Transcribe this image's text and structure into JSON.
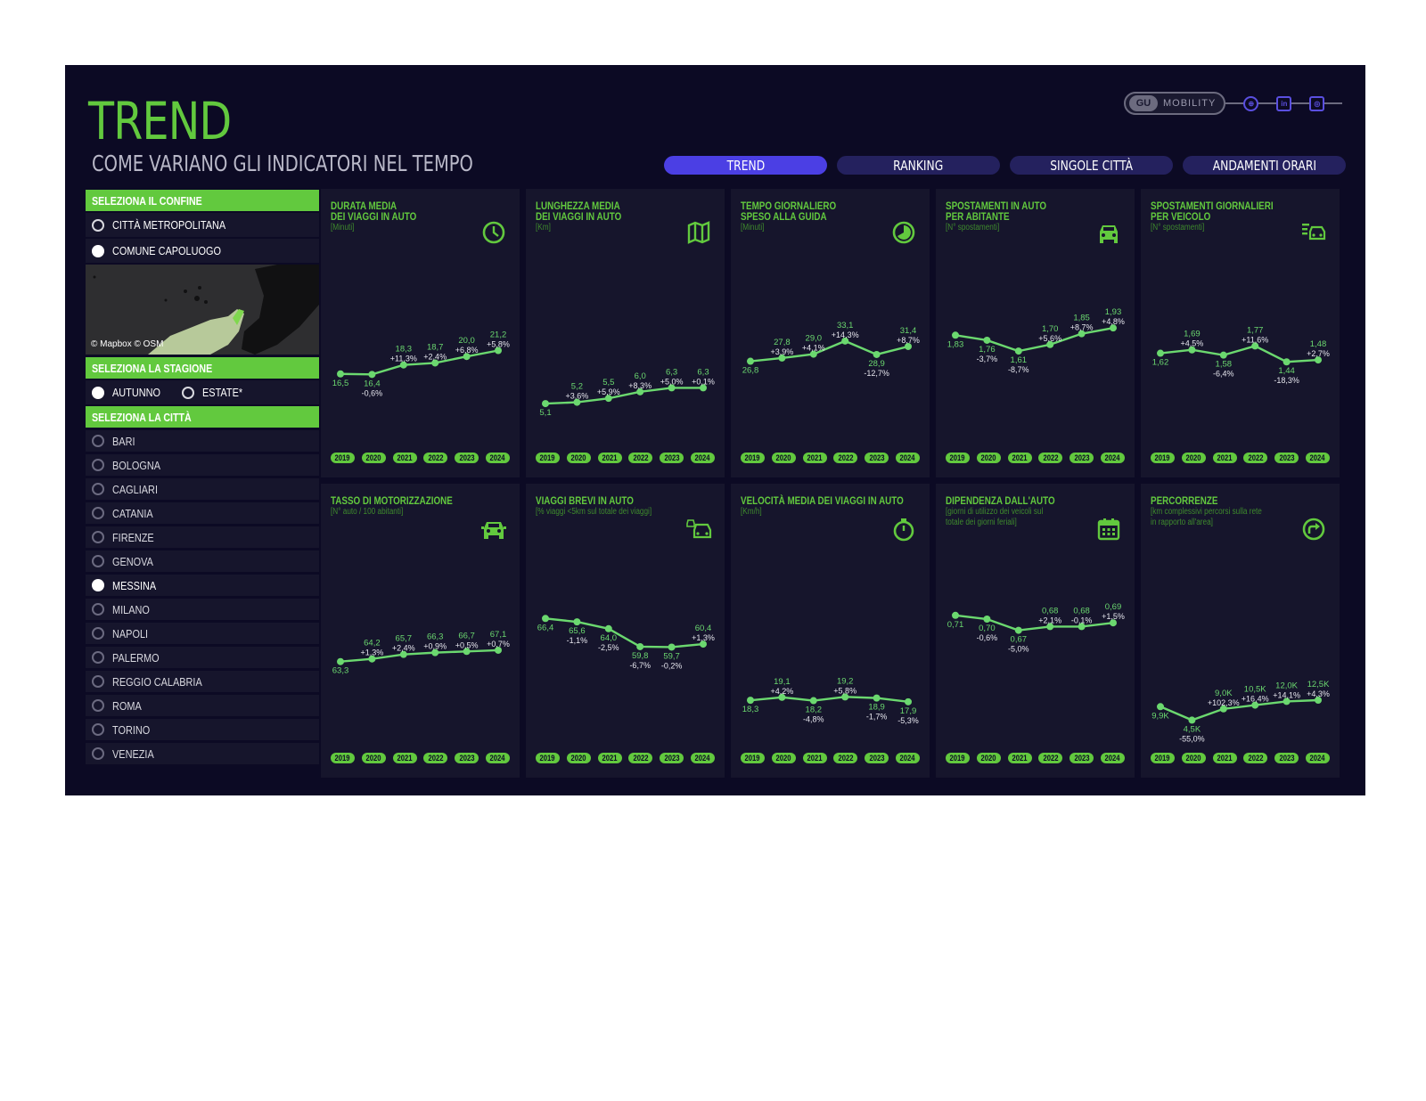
{
  "header": {
    "title": "TREND",
    "subtitle": "COME VARIANO GLI INDICATORI NEL TEMPO",
    "brand": "MOBILITY"
  },
  "nav": {
    "tabs": [
      {
        "label": "TREND",
        "active": true
      },
      {
        "label": "RANKING",
        "active": false
      },
      {
        "label": "SINGOLE CITTÀ",
        "active": false
      },
      {
        "label": "ANDAMENTI ORARI",
        "active": false
      }
    ]
  },
  "sidebar": {
    "confine_header": "SELEZIONA IL CONFINE",
    "confine_options": [
      {
        "label": "CITTÀ METROPOLITANA",
        "selected": false
      },
      {
        "label": "COMUNE CAPOLUOGO",
        "selected": true
      }
    ],
    "map_attribution": "© Mapbox © OSM",
    "stagione_header": "SELEZIONA LA STAGIONE",
    "stagione_options": [
      {
        "label": "AUTUNNO",
        "selected": true
      },
      {
        "label": "ESTATE*",
        "selected": false
      }
    ],
    "citta_header": "SELEZIONA LA CITTÀ",
    "cities": [
      {
        "label": "BARI",
        "selected": false
      },
      {
        "label": "BOLOGNA",
        "selected": false
      },
      {
        "label": "CAGLIARI",
        "selected": false
      },
      {
        "label": "CATANIA",
        "selected": false
      },
      {
        "label": "FIRENZE",
        "selected": false
      },
      {
        "label": "GENOVA",
        "selected": false
      },
      {
        "label": "MESSINA",
        "selected": true
      },
      {
        "label": "MILANO",
        "selected": false
      },
      {
        "label": "NAPOLI",
        "selected": false
      },
      {
        "label": "PALERMO",
        "selected": false
      },
      {
        "label": "REGGIO CALABRIA",
        "selected": false
      },
      {
        "label": "ROMA",
        "selected": false
      },
      {
        "label": "TORINO",
        "selected": false
      },
      {
        "label": "VENEZIA",
        "selected": false
      }
    ]
  },
  "colors": {
    "background": "#0c0a24",
    "card": "#16152c",
    "accent_green": "#62c93e",
    "line_green": "#6bd86f",
    "tab_active": "#4b3fe4",
    "tab_inactive": "#24215e"
  },
  "chart_data": [
    {
      "type": "line",
      "title": [
        "DURATA MEDIA",
        "DEI VIAGGI IN AUTO"
      ],
      "unit": [
        "[Minuti]"
      ],
      "icon": "clock-icon",
      "x": [
        "2019",
        "2020",
        "2021",
        "2022",
        "2023",
        "2024"
      ],
      "values": [
        16.5,
        16.4,
        18.3,
        18.7,
        20.0,
        21.2
      ],
      "labels": [
        "16,5",
        "16,4",
        "18,3",
        "18,7",
        "20,0",
        "21,2"
      ],
      "changes": [
        "",
        "-0,6%",
        "+11,3%",
        "+2,4%",
        "+6,8%",
        "+5,8%"
      ],
      "ylim": [
        5,
        34
      ]
    },
    {
      "type": "line",
      "title": [
        "LUNGHEZZA MEDIA",
        "DEI VIAGGI IN AUTO"
      ],
      "unit": [
        "[Km]"
      ],
      "icon": "map-icon",
      "x": [
        "2019",
        "2020",
        "2021",
        "2022",
        "2023",
        "2024"
      ],
      "values": [
        5.1,
        5.2,
        5.5,
        6.0,
        6.3,
        6.3
      ],
      "labels": [
        "5,1",
        "5,2",
        "5,5",
        "6,0",
        "6,3",
        "6,3"
      ],
      "changes": [
        "",
        "+3,6%",
        "+5,9%",
        "+8,3%",
        "+5,0%",
        "+0,1%"
      ],
      "ylim": [
        3,
        14
      ]
    },
    {
      "type": "line",
      "title": [
        "TEMPO GIORNALIERO",
        "SPESO ALLA GUIDA"
      ],
      "unit": [
        "[Minuti]"
      ],
      "icon": "pie-icon",
      "x": [
        "2019",
        "2020",
        "2021",
        "2022",
        "2023",
        "2024"
      ],
      "values": [
        26.8,
        27.8,
        29.0,
        33.1,
        28.9,
        31.4
      ],
      "labels": [
        "26,8",
        "27,8",
        "29,0",
        "33,1",
        "28,9",
        "31,4"
      ],
      "changes": [
        "",
        "+3,9%",
        "+4,1%",
        "+14,3%",
        "-12,7%",
        "+8,7%"
      ],
      "ylim": [
        5,
        50
      ]
    },
    {
      "type": "line",
      "title": [
        "SPOSTAMENTI IN AUTO",
        "PER ABITANTE"
      ],
      "unit": [
        "[N° spostamenti]"
      ],
      "icon": "car-front-icon",
      "x": [
        "2019",
        "2020",
        "2021",
        "2022",
        "2023",
        "2024"
      ],
      "values": [
        1.83,
        1.76,
        1.61,
        1.7,
        1.85,
        1.93
      ],
      "labels": [
        "1,83",
        "1,76",
        "1,61",
        "1,70",
        "1,85",
        "1,93"
      ],
      "changes": [
        "",
        "-3,7%",
        "-8,7%",
        "+5,6%",
        "+8,7%",
        "+4,8%"
      ],
      "ylim": [
        0.5,
        2.5
      ]
    },
    {
      "type": "line",
      "title": [
        "SPOSTAMENTI GIORNALIERI",
        "PER VEICOLO"
      ],
      "unit": [
        "[N° spostamenti]"
      ],
      "icon": "car-list-icon",
      "x": [
        "2019",
        "2020",
        "2021",
        "2022",
        "2023",
        "2024"
      ],
      "values": [
        1.62,
        1.69,
        1.58,
        1.77,
        1.44,
        1.48
      ],
      "labels": [
        "1,62",
        "1,69",
        "1,58",
        "1,77",
        "1,44",
        "1,48"
      ],
      "changes": [
        "",
        "+4,5%",
        "-6,4%",
        "+11,6%",
        "-18,3%",
        "+2,7%"
      ],
      "ylim": [
        0,
        3
      ]
    },
    {
      "type": "line",
      "title": [
        "TASSO DI MOTORIZZAZIONE"
      ],
      "unit": [
        "[N° auto / 100 abitanti]"
      ],
      "icon": "car-icon",
      "x": [
        "2019",
        "2020",
        "2021",
        "2022",
        "2023",
        "2024"
      ],
      "values": [
        63.3,
        64.2,
        65.7,
        66.3,
        66.7,
        67.1
      ],
      "labels": [
        "63,3",
        "64,2",
        "65,7",
        "66,3",
        "66,7",
        "67,1"
      ],
      "changes": [
        "",
        "+1,3%",
        "+2,4%",
        "+0,9%",
        "+0,5%",
        "+0,7%"
      ],
      "ylim": [
        40,
        90
      ]
    },
    {
      "type": "line",
      "title": [
        "VIAGGI BREVI IN AUTO"
      ],
      "unit": [
        "[% viaggi <5km sul totale dei viaggi]"
      ],
      "icon": "short-trip-car-icon",
      "x": [
        "2019",
        "2020",
        "2021",
        "2022",
        "2023",
        "2024"
      ],
      "values": [
        66.4,
        65.6,
        64.0,
        59.8,
        59.7,
        60.4
      ],
      "labels": [
        "66,4",
        "65,6",
        "64,0",
        "59,8",
        "59,7",
        "60,4"
      ],
      "changes": [
        "",
        "-1,1%",
        "-2,5%",
        "-6,7%",
        "-0,2%",
        "+1,3%"
      ],
      "ylim": [
        40,
        75
      ]
    },
    {
      "type": "line",
      "title": [
        "VELOCITÀ MEDIA DEI VIAGGI IN AUTO"
      ],
      "unit": [
        "[Km/h]"
      ],
      "icon": "stopwatch-icon",
      "x": [
        "2019",
        "2020",
        "2021",
        "2022",
        "2023",
        "2024"
      ],
      "values": [
        18.3,
        19.1,
        18.2,
        19.2,
        18.9,
        17.9
      ],
      "labels": [
        "18,3",
        "19,1",
        "18,2",
        "19,2",
        "18,9",
        "17,9"
      ],
      "changes": [
        "",
        "+4,2%",
        "-4,8%",
        "+5,8%",
        "-1,7%",
        "-5,3%"
      ],
      "ylim": [
        10,
        50
      ]
    },
    {
      "type": "line",
      "title": [
        "DIPENDENZA DALL'AUTO"
      ],
      "unit": [
        "[giorni di utilizzo dei veicoli sul",
        "totale dei giorni feriali]"
      ],
      "icon": "calendar-icon",
      "x": [
        "2019",
        "2020",
        "2021",
        "2022",
        "2023",
        "2024"
      ],
      "values": [
        0.71,
        0.7,
        0.67,
        0.68,
        0.68,
        0.69
      ],
      "labels": [
        "0,71",
        "0,70",
        "0,67",
        "0,68",
        "0,68",
        "0,69"
      ],
      "changes": [
        "",
        "-0,6%",
        "-5,0%",
        "+2,1%",
        "-0,1%",
        "+1,5%"
      ],
      "ylim": [
        0.4,
        0.8
      ]
    },
    {
      "type": "line",
      "title": [
        "PERCORRENZE"
      ],
      "unit": [
        "[km complessivi percorsi sulla rete",
        "in rapporto all'area]"
      ],
      "icon": "route-arrow-icon",
      "x": [
        "2019",
        "2020",
        "2021",
        "2022",
        "2023",
        "2024"
      ],
      "values": [
        9.9,
        4.5,
        9.0,
        10.5,
        12.0,
        12.5
      ],
      "labels": [
        "9,9K",
        "4,5K",
        "9,0K",
        "10,5K",
        "12,0K",
        "12,5K"
      ],
      "changes": [
        "",
        "-55,0%",
        "+102,3%",
        "+16,4%",
        "+14,1%",
        "+4,3%"
      ],
      "ylim": [
        0,
        60
      ]
    }
  ]
}
